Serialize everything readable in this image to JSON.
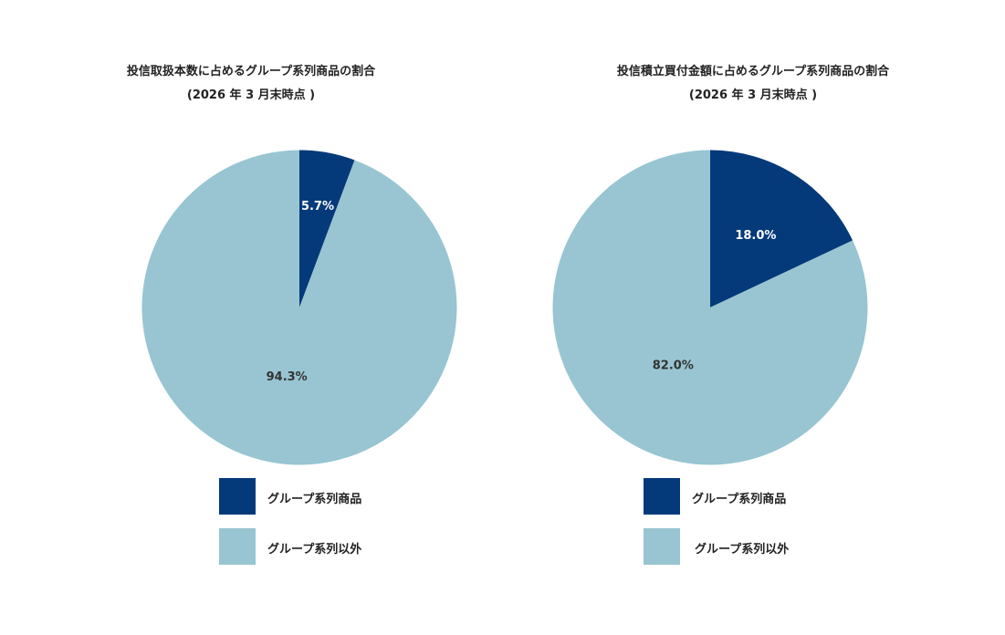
{
  "colors": {
    "group": "#053a7a",
    "other": "#98c5d1",
    "label_dark": "#333333",
    "label_light": "#ffffff"
  },
  "chart_data": [
    {
      "type": "pie",
      "title": "投信取扱本数に占めるグループ系列商品の割合",
      "subtitle": "(2026 年 3 月末時点 )",
      "slices": [
        {
          "label": "グループ系列商品",
          "value": 5.7,
          "display": "5.7%"
        },
        {
          "label": "グループ系列以外",
          "value": 94.3,
          "display": "94.3%"
        }
      ],
      "legend": [
        "グループ系列商品",
        "グループ系列以外"
      ],
      "legend_position": "bottom"
    },
    {
      "type": "pie",
      "title": "投信積立買付金額に占めるグループ系列商品の割合",
      "subtitle": "(2026 年 3 月末時点 )",
      "slices": [
        {
          "label": "グループ系列商品",
          "value": 18.0,
          "display": "18.0%"
        },
        {
          "label": "グループ系列以外",
          "value": 82.0,
          "display": "82.0%"
        }
      ],
      "legend": [
        "グループ系列商品",
        "グループ系列以外"
      ],
      "legend_position": "bottom"
    }
  ]
}
